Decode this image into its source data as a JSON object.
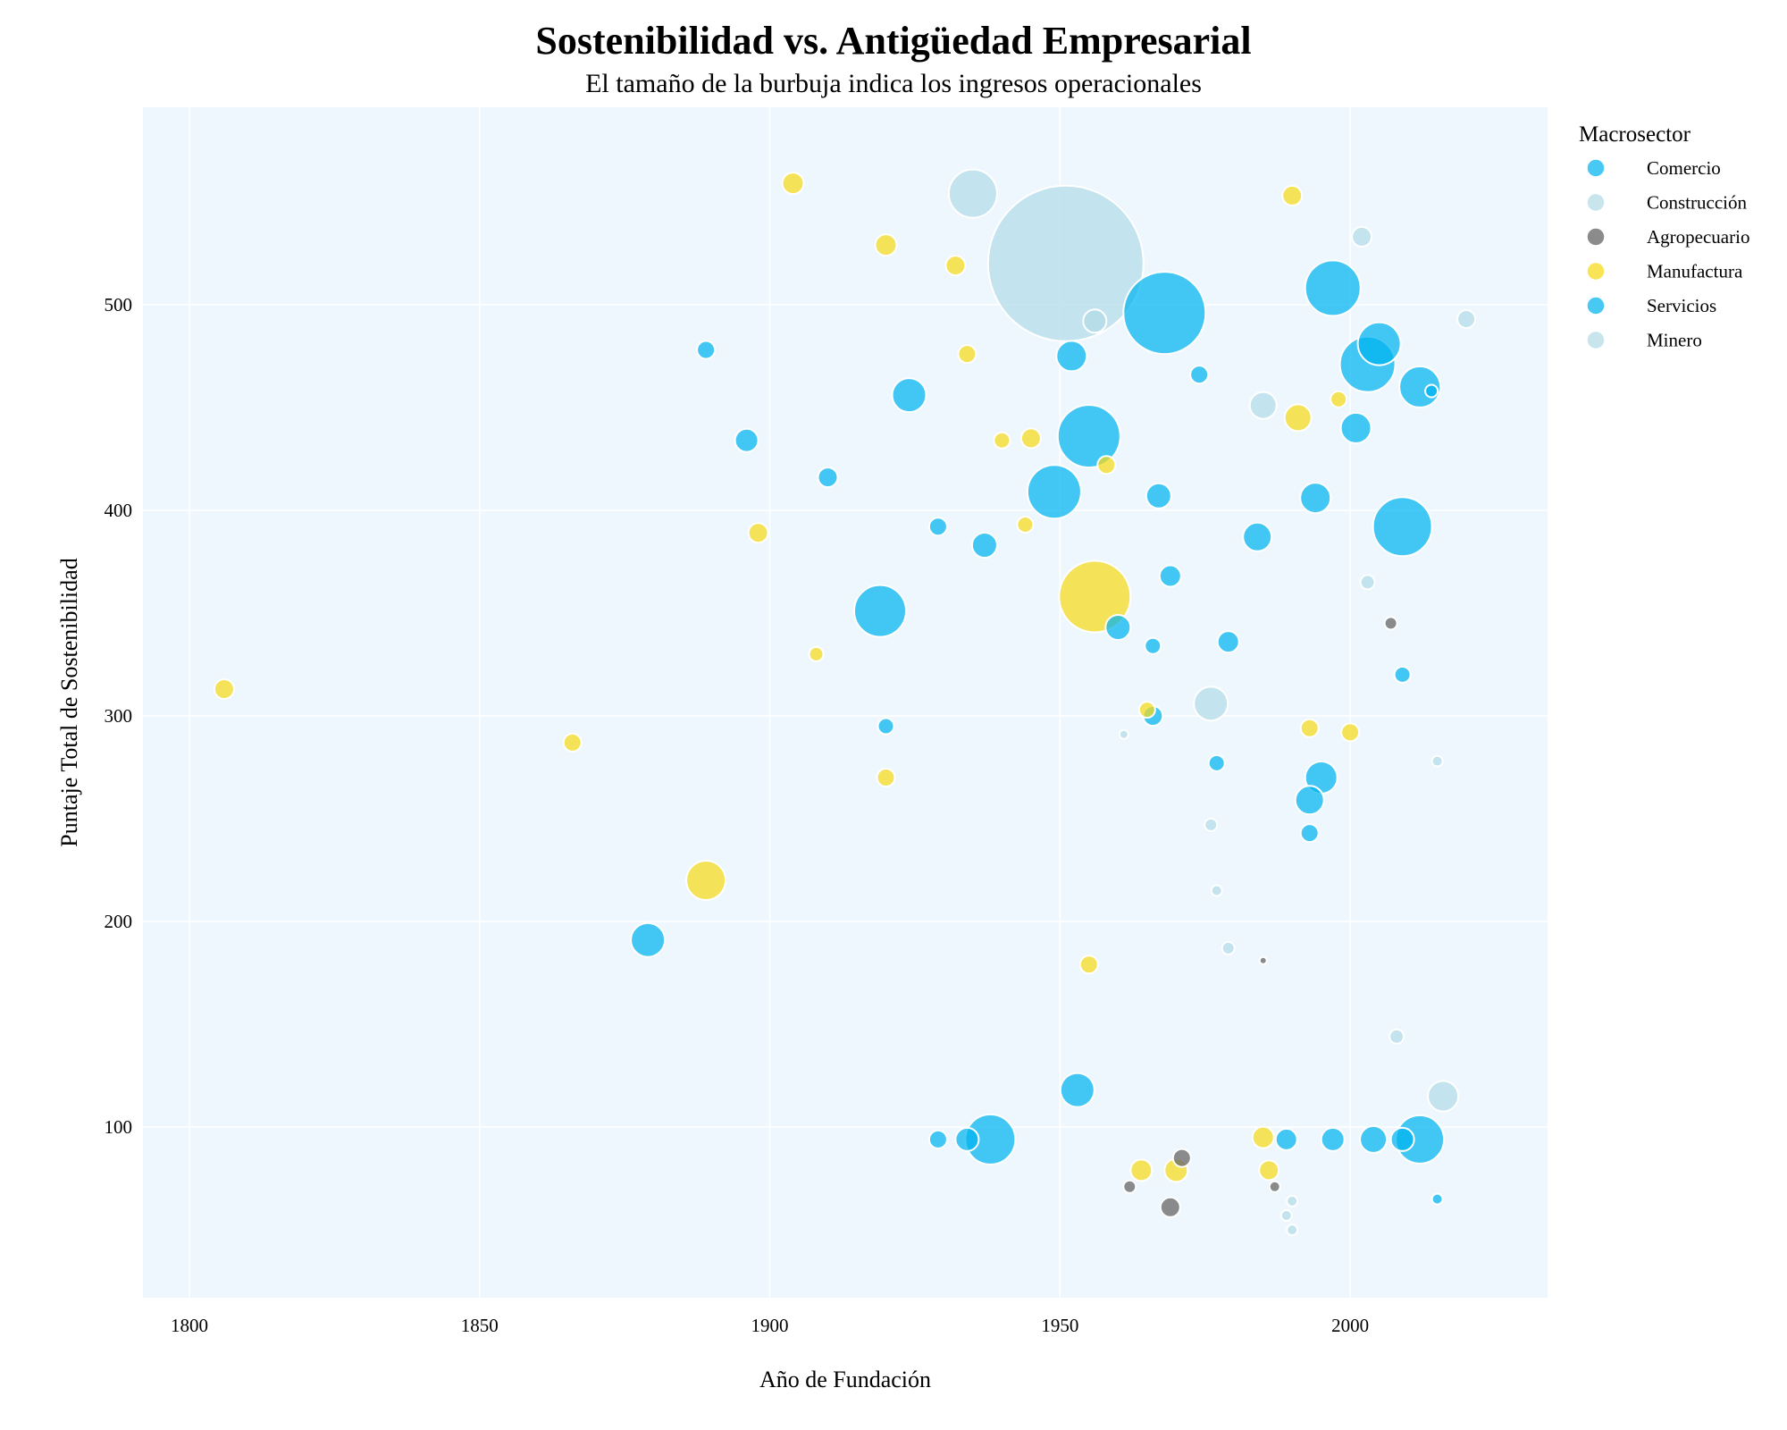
{
  "chart_data": {
    "type": "scatter",
    "title": "Sostenibilidad vs. Antigüedad Empresarial",
    "subtitle": "El tamaño de la burbuja indica los ingresos operacionales",
    "xlabel": "Año de Fundación",
    "ylabel": "Puntaje Total de Sostenibilidad",
    "xlim": [
      1792,
      2034
    ],
    "ylim": [
      17,
      596
    ],
    "xticks": [
      1800,
      1850,
      1900,
      1950,
      2000
    ],
    "yticks": [
      100,
      200,
      300,
      400,
      500
    ],
    "grid": true,
    "legend": {
      "title": "Macrosector",
      "placement": "top-right",
      "entries": [
        "Comercio",
        "Construcción",
        "Agropecuario",
        "Manufactura",
        "Servicios",
        "Minero"
      ]
    },
    "colors": {
      "Comercio": "#00b4f0",
      "Construcción": "#b3dbe8",
      "Agropecuario": "#6e6e6e",
      "Manufactura": "#f7d917",
      "Servicios": "#00b4f0",
      "Minero": "#b3dbe8",
      "plot_bg": "#eef7fd"
    },
    "points": [
      {
        "s": "Comercio",
        "x": 1889,
        "y": 478,
        "r": 10
      },
      {
        "s": "Comercio",
        "x": 1896,
        "y": 434,
        "r": 13
      },
      {
        "s": "Comercio",
        "x": 1910,
        "y": 416,
        "r": 11
      },
      {
        "s": "Comercio",
        "x": 1924,
        "y": 456,
        "r": 19
      },
      {
        "s": "Comercio",
        "x": 1929,
        "y": 392,
        "r": 10
      },
      {
        "s": "Comercio",
        "x": 1937,
        "y": 383,
        "r": 14
      },
      {
        "s": "Comercio",
        "x": 1949,
        "y": 409,
        "r": 30
      },
      {
        "s": "Comercio",
        "x": 1952,
        "y": 475,
        "r": 17
      },
      {
        "s": "Comercio",
        "x": 1955,
        "y": 436,
        "r": 35
      },
      {
        "s": "Comercio",
        "x": 1968,
        "y": 496,
        "r": 46
      },
      {
        "s": "Comercio",
        "x": 1974,
        "y": 466,
        "r": 10
      },
      {
        "s": "Comercio",
        "x": 1967,
        "y": 407,
        "r": 14
      },
      {
        "s": "Comercio",
        "x": 1969,
        "y": 368,
        "r": 12
      },
      {
        "s": "Comercio",
        "x": 1919,
        "y": 351,
        "r": 29
      },
      {
        "s": "Comercio",
        "x": 1960,
        "y": 343,
        "r": 14
      },
      {
        "s": "Comercio",
        "x": 1966,
        "y": 334,
        "r": 9
      },
      {
        "s": "Comercio",
        "x": 1979,
        "y": 336,
        "r": 12
      },
      {
        "s": "Comercio",
        "x": 1984,
        "y": 387,
        "r": 16
      },
      {
        "s": "Comercio",
        "x": 1997,
        "y": 508,
        "r": 31
      },
      {
        "s": "Comercio",
        "x": 2005,
        "y": 481,
        "r": 24
      },
      {
        "s": "Comercio",
        "x": 2003,
        "y": 471,
        "r": 31
      },
      {
        "s": "Comercio",
        "x": 2012,
        "y": 460,
        "r": 23
      },
      {
        "s": "Comercio",
        "x": 2001,
        "y": 440,
        "r": 17
      },
      {
        "s": "Comercio",
        "x": 1994,
        "y": 406,
        "r": 17
      },
      {
        "s": "Comercio",
        "x": 2009,
        "y": 392,
        "r": 33
      },
      {
        "s": "Comercio",
        "x": 2014,
        "y": 458,
        "r": 7
      },
      {
        "s": "Comercio",
        "x": 1920,
        "y": 295,
        "r": 9
      },
      {
        "s": "Comercio",
        "x": 1966,
        "y": 300,
        "r": 11
      },
      {
        "s": "Comercio",
        "x": 1977,
        "y": 277,
        "r": 9
      },
      {
        "s": "Comercio",
        "x": 1995,
        "y": 270,
        "r": 18
      },
      {
        "s": "Comercio",
        "x": 1993,
        "y": 259,
        "r": 16
      },
      {
        "s": "Comercio",
        "x": 1993,
        "y": 243,
        "r": 10
      },
      {
        "s": "Comercio",
        "x": 2009,
        "y": 320,
        "r": 9
      },
      {
        "s": "Comercio",
        "x": 1879,
        "y": 191,
        "r": 19
      },
      {
        "s": "Servicios",
        "x": 1929,
        "y": 94,
        "r": 10
      },
      {
        "s": "Servicios",
        "x": 1934,
        "y": 94,
        "r": 13
      },
      {
        "s": "Servicios",
        "x": 1938,
        "y": 94,
        "r": 28
      },
      {
        "s": "Servicios",
        "x": 1953,
        "y": 118,
        "r": 19
      },
      {
        "s": "Servicios",
        "x": 1989,
        "y": 94,
        "r": 12
      },
      {
        "s": "Servicios",
        "x": 1997,
        "y": 94,
        "r": 13
      },
      {
        "s": "Servicios",
        "x": 2004,
        "y": 94,
        "r": 15
      },
      {
        "s": "Servicios",
        "x": 2009,
        "y": 94,
        "r": 13
      },
      {
        "s": "Servicios",
        "x": 2012,
        "y": 94,
        "r": 27
      },
      {
        "s": "Servicios",
        "x": 2015,
        "y": 65,
        "r": 6
      },
      {
        "s": "Construcción",
        "x": 1935,
        "y": 554,
        "r": 27
      },
      {
        "s": "Construcción",
        "x": 1951,
        "y": 520,
        "r": 87
      },
      {
        "s": "Construcción",
        "x": 1956,
        "y": 492,
        "r": 13
      },
      {
        "s": "Construcción",
        "x": 1985,
        "y": 451,
        "r": 15
      },
      {
        "s": "Construcción",
        "x": 2002,
        "y": 533,
        "r": 11
      },
      {
        "s": "Construcción",
        "x": 2020,
        "y": 493,
        "r": 10
      },
      {
        "s": "Construcción",
        "x": 2003,
        "y": 365,
        "r": 8
      },
      {
        "s": "Construcción",
        "x": 1976,
        "y": 306,
        "r": 19
      },
      {
        "s": "Construcción",
        "x": 1961,
        "y": 291,
        "r": 5
      },
      {
        "s": "Minero",
        "x": 2015,
        "y": 278,
        "r": 6
      },
      {
        "s": "Minero",
        "x": 1976,
        "y": 247,
        "r": 7
      },
      {
        "s": "Minero",
        "x": 1977,
        "y": 215,
        "r": 6
      },
      {
        "s": "Minero",
        "x": 1979,
        "y": 187,
        "r": 7
      },
      {
        "s": "Minero",
        "x": 2008,
        "y": 144,
        "r": 8
      },
      {
        "s": "Minero",
        "x": 2016,
        "y": 115,
        "r": 17
      },
      {
        "s": "Minero",
        "x": 1990,
        "y": 64,
        "r": 6
      },
      {
        "s": "Minero",
        "x": 1989,
        "y": 57,
        "r": 6
      },
      {
        "s": "Minero",
        "x": 1990,
        "y": 50,
        "r": 6
      },
      {
        "s": "Agropecuario",
        "x": 2007,
        "y": 345,
        "r": 7
      },
      {
        "s": "Agropecuario",
        "x": 1985,
        "y": 181,
        "r": 4
      },
      {
        "s": "Agropecuario",
        "x": 1971,
        "y": 85,
        "r": 10
      },
      {
        "s": "Agropecuario",
        "x": 1962,
        "y": 71,
        "r": 7
      },
      {
        "s": "Agropecuario",
        "x": 1987,
        "y": 71,
        "r": 6
      },
      {
        "s": "Agropecuario",
        "x": 1969,
        "y": 61,
        "r": 11
      },
      {
        "s": "Manufactura",
        "x": 1904,
        "y": 559,
        "r": 12
      },
      {
        "s": "Manufactura",
        "x": 1920,
        "y": 529,
        "r": 12
      },
      {
        "s": "Manufactura",
        "x": 1932,
        "y": 519,
        "r": 11
      },
      {
        "s": "Manufactura",
        "x": 1934,
        "y": 476,
        "r": 10
      },
      {
        "s": "Manufactura",
        "x": 1940,
        "y": 434,
        "r": 9
      },
      {
        "s": "Manufactura",
        "x": 1945,
        "y": 435,
        "r": 11
      },
      {
        "s": "Manufactura",
        "x": 1958,
        "y": 422,
        "r": 10
      },
      {
        "s": "Manufactura",
        "x": 1944,
        "y": 393,
        "r": 9
      },
      {
        "s": "Manufactura",
        "x": 1898,
        "y": 389,
        "r": 11
      },
      {
        "s": "Manufactura",
        "x": 1990,
        "y": 553,
        "r": 11
      },
      {
        "s": "Manufactura",
        "x": 1991,
        "y": 445,
        "r": 15
      },
      {
        "s": "Manufactura",
        "x": 1998,
        "y": 454,
        "r": 9
      },
      {
        "s": "Manufactura",
        "x": 1956,
        "y": 358,
        "r": 40
      },
      {
        "s": "Manufactura",
        "x": 1908,
        "y": 330,
        "r": 8
      },
      {
        "s": "Manufactura",
        "x": 1806,
        "y": 313,
        "r": 11
      },
      {
        "s": "Manufactura",
        "x": 1866,
        "y": 287,
        "r": 10
      },
      {
        "s": "Manufactura",
        "x": 1920,
        "y": 270,
        "r": 10
      },
      {
        "s": "Manufactura",
        "x": 1965,
        "y": 303,
        "r": 9
      },
      {
        "s": "Manufactura",
        "x": 1993,
        "y": 294,
        "r": 10
      },
      {
        "s": "Manufactura",
        "x": 2000,
        "y": 292,
        "r": 10
      },
      {
        "s": "Manufactura",
        "x": 1889,
        "y": 220,
        "r": 22
      },
      {
        "s": "Manufactura",
        "x": 1955,
        "y": 179,
        "r": 10
      },
      {
        "s": "Manufactura",
        "x": 1985,
        "y": 95,
        "r": 12
      },
      {
        "s": "Manufactura",
        "x": 1964,
        "y": 79,
        "r": 12
      },
      {
        "s": "Manufactura",
        "x": 1970,
        "y": 79,
        "r": 13
      },
      {
        "s": "Manufactura",
        "x": 1986,
        "y": 79,
        "r": 11
      }
    ]
  }
}
